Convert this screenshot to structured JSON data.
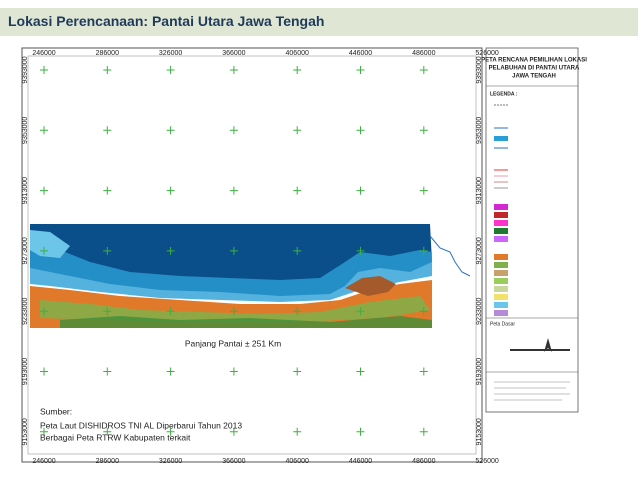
{
  "header": {
    "title": "Lokasi Perencanaan: Pantai Utara Jawa Tengah"
  },
  "map": {
    "x_labels": [
      "246000",
      "286000",
      "326000",
      "366000",
      "406000",
      "446000",
      "486000",
      "526000"
    ],
    "y_labels": [
      "9393000",
      "9353000",
      "9313000",
      "9273000",
      "9233000",
      "9193000",
      "9153000"
    ],
    "annotation": "Panjang Pantai ± 251 Km",
    "legend_title": [
      "PETA RENCANA PEMILIHAN LOKASI",
      "PELABUHAN DI PANTAI UTARA",
      "JAWA TENGAH"
    ],
    "legend_heading": "LEGENDA :",
    "inset_label": "Peta Dasar"
  },
  "source": {
    "heading": "Sumber:",
    "lines": [
      "Peta Laut DISHIDROS TNI AL Diperbarui Tahun 2013",
      "Berbagai Peta RTRW Kabupaten terkait"
    ]
  }
}
